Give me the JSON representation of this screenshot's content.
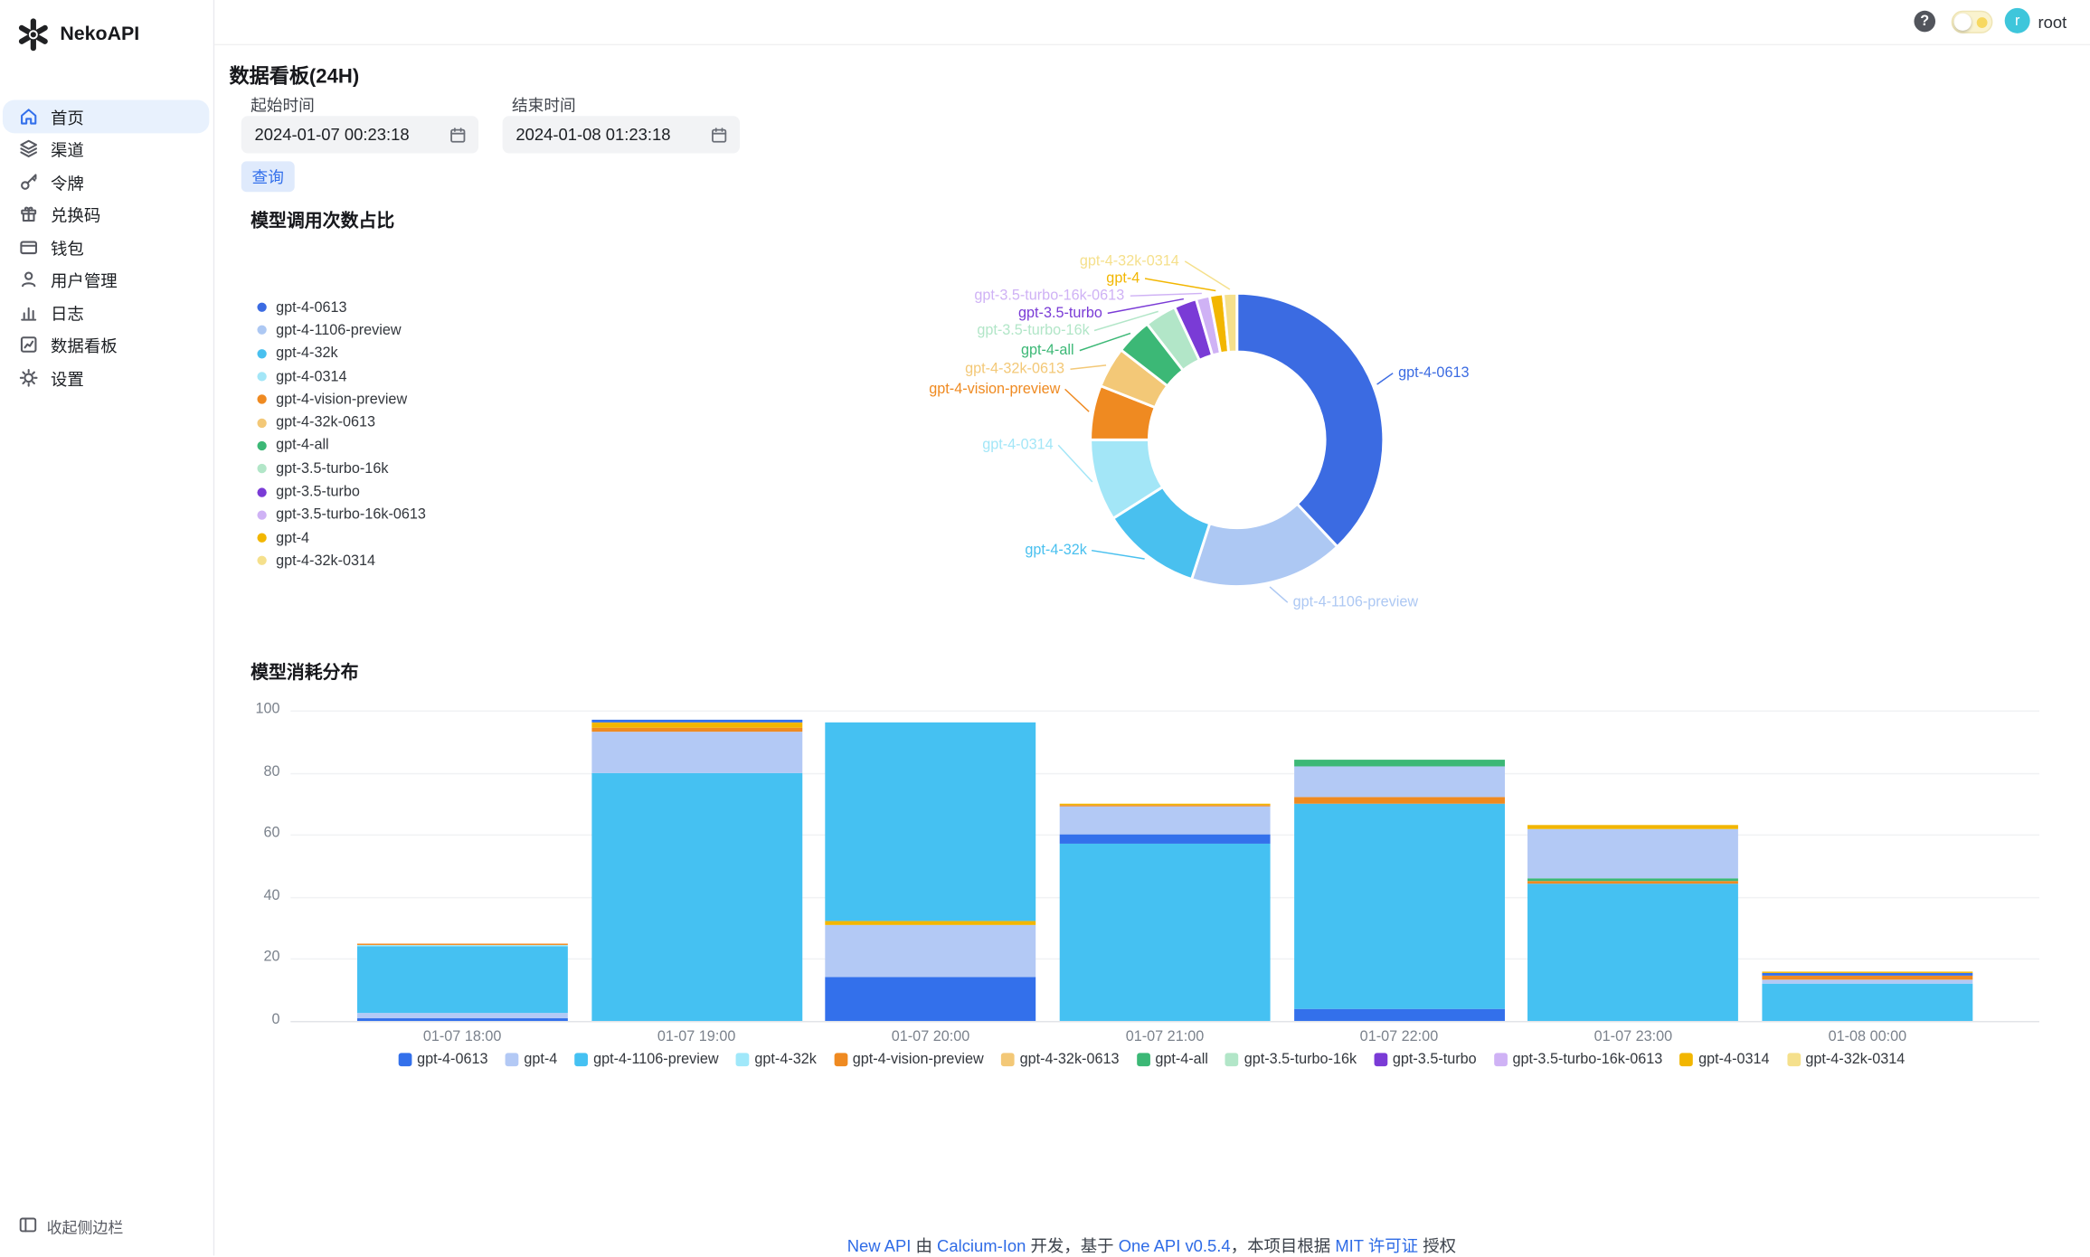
{
  "app": {
    "name": "NekoAPI"
  },
  "header": {
    "help_glyph": "?",
    "user": {
      "initial": "r",
      "name": "root"
    }
  },
  "sidebar": {
    "items": [
      {
        "id": "home",
        "label": "首页",
        "active": true
      },
      {
        "id": "channels",
        "label": "渠道",
        "active": false
      },
      {
        "id": "tokens",
        "label": "令牌",
        "active": false
      },
      {
        "id": "redemptions",
        "label": "兑换码",
        "active": false
      },
      {
        "id": "wallet",
        "label": "钱包",
        "active": false
      },
      {
        "id": "users",
        "label": "用户管理",
        "active": false
      },
      {
        "id": "logs",
        "label": "日志",
        "active": false
      },
      {
        "id": "dashboard",
        "label": "数据看板",
        "active": false
      },
      {
        "id": "settings",
        "label": "设置",
        "active": false
      }
    ],
    "collapse_label": "收起侧边栏"
  },
  "main": {
    "title": "数据看板(24H)",
    "filters": {
      "start_label": "起始时间",
      "start_value": "2024-01-07 00:23:18",
      "end_label": "结束时间",
      "end_value": "2024-01-08 01:23:18",
      "query_label": "查询"
    }
  },
  "chart_data": [
    {
      "type": "pie",
      "title": "模型调用次数占比",
      "unit": "percent_of_calls",
      "legend_position": "left",
      "slices": [
        {
          "name": "gpt-4-0613",
          "value": 38,
          "color": "#3b6be2"
        },
        {
          "name": "gpt-4-1106-preview",
          "value": 17,
          "color": "#adc8f3"
        },
        {
          "name": "gpt-4-32k",
          "value": 11,
          "color": "#49c0ef"
        },
        {
          "name": "gpt-4-0314",
          "value": 9,
          "color": "#a3e6f7"
        },
        {
          "name": "gpt-4-vision-preview",
          "value": 6,
          "color": "#ef8a21"
        },
        {
          "name": "gpt-4-32k-0613",
          "value": 4.5,
          "color": "#f3c877"
        },
        {
          "name": "gpt-4-all",
          "value": 4,
          "color": "#3cb876"
        },
        {
          "name": "gpt-3.5-turbo-16k",
          "value": 3.5,
          "color": "#b2e6c8"
        },
        {
          "name": "gpt-3.5-turbo",
          "value": 2.5,
          "color": "#7a3bd6"
        },
        {
          "name": "gpt-3.5-turbo-16k-0613",
          "value": 1.5,
          "color": "#cfb2f5"
        },
        {
          "name": "gpt-4",
          "value": 1.5,
          "color": "#f2b600"
        },
        {
          "name": "gpt-4-32k-0314",
          "value": 1.5,
          "color": "#f5e08c"
        }
      ]
    },
    {
      "type": "bar",
      "stacked": true,
      "title": "模型消耗分布",
      "ylim": [
        0,
        100
      ],
      "yticks": [
        0,
        20,
        40,
        60,
        80,
        100
      ],
      "grid": true,
      "legend_position": "bottom",
      "categories": [
        "01-07 18:00",
        "01-07 19:00",
        "01-07 20:00",
        "01-07 21:00",
        "01-07 22:00",
        "01-07 23:00",
        "01-08 00:00"
      ],
      "colors": {
        "gpt-4-0613": "#3370eb",
        "gpt-4": "#b3c9f5",
        "gpt-4-1106-preview": "#45c1f2",
        "gpt-4-32k": "#a0e8fa",
        "gpt-4-vision-preview": "#ef8a21",
        "gpt-4-32k-0613": "#f3c877",
        "gpt-4-all": "#3cb876",
        "gpt-3.5-turbo-16k": "#b2e6c8",
        "gpt-3.5-turbo": "#7a3bd6",
        "gpt-3.5-turbo-16k-0613": "#cfb2f5",
        "gpt-4-0314": "#f2b600",
        "gpt-4-32k-0314": "#f5e08c"
      },
      "legend": [
        "gpt-4-0613",
        "gpt-4",
        "gpt-4-1106-preview",
        "gpt-4-32k",
        "gpt-4-vision-preview",
        "gpt-4-32k-0613",
        "gpt-4-all",
        "gpt-3.5-turbo-16k",
        "gpt-3.5-turbo",
        "gpt-3.5-turbo-16k-0613",
        "gpt-4-0314",
        "gpt-4-32k-0314"
      ],
      "bars": [
        {
          "category": "01-07 18:00",
          "total": 25,
          "segments": [
            {
              "model": "gpt-4-0613",
              "value": 1
            },
            {
              "model": "gpt-4",
              "value": 1.5
            },
            {
              "model": "gpt-4-1106-preview",
              "value": 21.5
            },
            {
              "model": "gpt-4-32k",
              "value": 0.5
            },
            {
              "model": "gpt-4-vision-preview",
              "value": 0.5
            }
          ]
        },
        {
          "category": "01-07 19:00",
          "total": 97,
          "segments": [
            {
              "model": "gpt-4-1106-preview",
              "value": 80
            },
            {
              "model": "gpt-4",
              "value": 13
            },
            {
              "model": "gpt-4-vision-preview",
              "value": 1.5
            },
            {
              "model": "gpt-4-0314",
              "value": 1.5
            },
            {
              "model": "gpt-4-0613",
              "value": 1
            }
          ]
        },
        {
          "category": "01-07 20:00",
          "total": 96,
          "segments": [
            {
              "model": "gpt-4-0613",
              "value": 14
            },
            {
              "model": "gpt-4",
              "value": 17
            },
            {
              "model": "gpt-4-0314",
              "value": 1
            },
            {
              "model": "gpt-4-1106-preview",
              "value": 64
            }
          ]
        },
        {
          "category": "01-07 21:00",
          "total": 70,
          "segments": [
            {
              "model": "gpt-4-1106-preview",
              "value": 57
            },
            {
              "model": "gpt-4-0613",
              "value": 3
            },
            {
              "model": "gpt-4",
              "value": 9
            },
            {
              "model": "gpt-4-vision-preview",
              "value": 0.5
            },
            {
              "model": "gpt-4-0314",
              "value": 0.5
            }
          ]
        },
        {
          "category": "01-07 22:00",
          "total": 84,
          "segments": [
            {
              "model": "gpt-4-0613",
              "value": 4
            },
            {
              "model": "gpt-4-1106-preview",
              "value": 66
            },
            {
              "model": "gpt-4-vision-preview",
              "value": 2
            },
            {
              "model": "gpt-4",
              "value": 10
            },
            {
              "model": "gpt-4-all",
              "value": 2
            }
          ]
        },
        {
          "category": "01-07 23:00",
          "total": 63,
          "segments": [
            {
              "model": "gpt-4-1106-preview",
              "value": 44
            },
            {
              "model": "gpt-4-vision-preview",
              "value": 1
            },
            {
              "model": "gpt-4-all",
              "value": 1
            },
            {
              "model": "gpt-4",
              "value": 16
            },
            {
              "model": "gpt-4-0314",
              "value": 1
            }
          ]
        },
        {
          "category": "01-08 00:00",
          "total": 16,
          "segments": [
            {
              "model": "gpt-4-1106-preview",
              "value": 12
            },
            {
              "model": "gpt-4",
              "value": 1.5
            },
            {
              "model": "gpt-4-vision-preview",
              "value": 1
            },
            {
              "model": "gpt-4-0613",
              "value": 1
            },
            {
              "model": "gpt-4-0314",
              "value": 0.5
            }
          ]
        }
      ]
    }
  ],
  "footer": {
    "segments": [
      {
        "text": "New API",
        "link": true
      },
      {
        "text": " 由 ",
        "link": false
      },
      {
        "text": "Calcium-Ion",
        "link": true
      },
      {
        "text": " 开发，基于 ",
        "link": false
      },
      {
        "text": "One API v0.5.4",
        "link": true
      },
      {
        "text": "，本项目根据 ",
        "link": false
      },
      {
        "text": "MIT 许可证",
        "link": true
      },
      {
        "text": " 授权",
        "link": false
      }
    ]
  }
}
